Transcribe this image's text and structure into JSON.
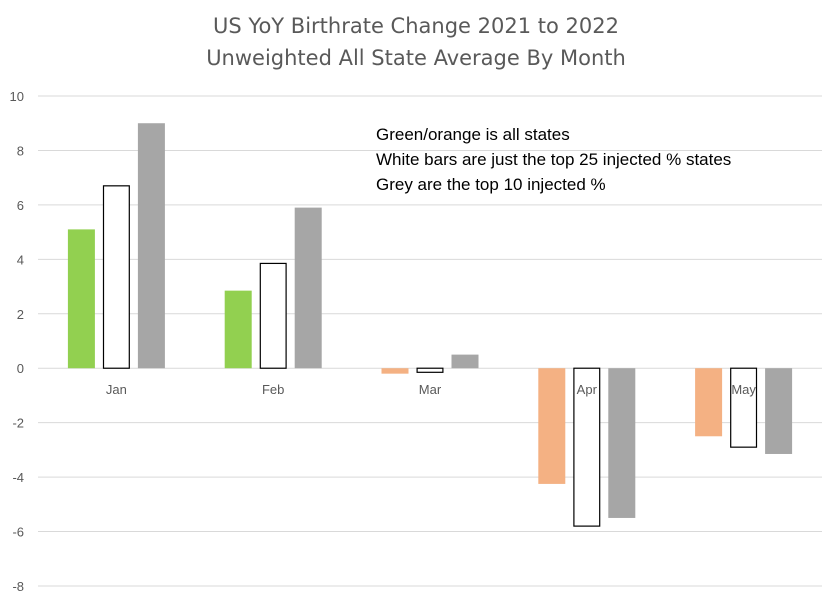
{
  "colors": {
    "positive": "#92d050",
    "negative": "#f4b183",
    "white_fill": "#ffffff",
    "white_stroke": "#000000",
    "grey": "#a6a6a6"
  },
  "chart_data": {
    "type": "bar",
    "title": [
      "US YoY Birthrate Change 2021 to 2022",
      "Unweighted All State Average By Month"
    ],
    "xlabel": "",
    "ylabel": "",
    "ylim": [
      -8,
      10
    ],
    "yticks": [
      10,
      8,
      6,
      4,
      2,
      0,
      -2,
      -4,
      -6,
      -8
    ],
    "grid": true,
    "categories": [
      "Jan",
      "Feb",
      "Mar",
      "Apr",
      "May"
    ],
    "series": [
      {
        "values": [
          5.1,
          2.85,
          -0.2,
          -4.25,
          -2.5
        ]
      },
      {
        "values": [
          6.7,
          3.85,
          -0.15,
          -5.8,
          -2.9
        ]
      },
      {
        "values": [
          9.0,
          5.9,
          0.5,
          -5.5,
          -3.15
        ]
      }
    ],
    "annotations": [
      "Green/orange is all states",
      "White bars are just the top 25 injected % states",
      "Grey are the top 10 injected %"
    ]
  }
}
